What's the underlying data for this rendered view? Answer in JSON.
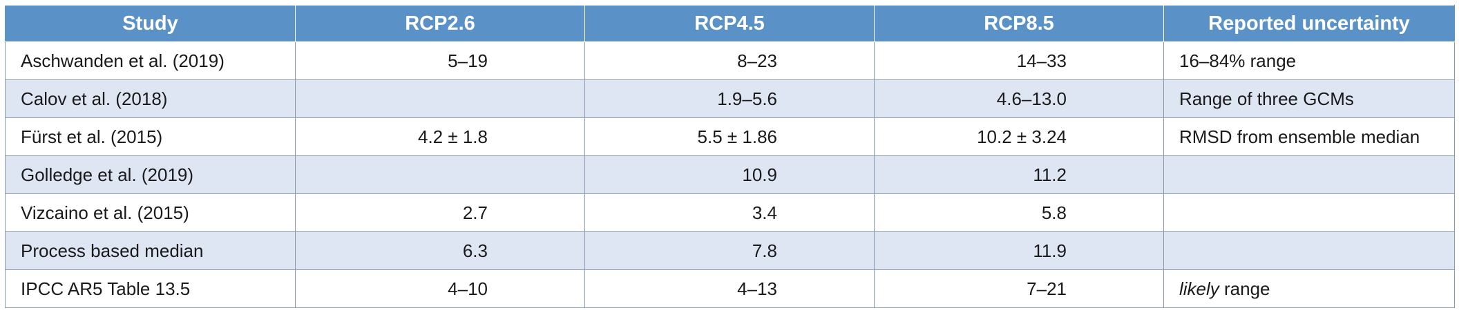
{
  "table": {
    "headers": [
      "Study",
      "RCP2.6",
      "RCP4.5",
      "RCP8.5",
      "Reported uncertainty"
    ],
    "rows": [
      {
        "study": "Aschwanden et al. (2019)",
        "rcp26": "5–19",
        "rcp45": "8–23",
        "rcp85": "14–33",
        "uncertainty": "16–84% range"
      },
      {
        "study": "Calov et al. (2018)",
        "rcp26": "",
        "rcp45": "1.9–5.6",
        "rcp85": "4.6–13.0",
        "uncertainty": "Range of three GCMs"
      },
      {
        "study": "Fürst et al. (2015)",
        "rcp26": "4.2 ± 1.8",
        "rcp45": "5.5 ± 1.86",
        "rcp85": "10.2 ± 3.24",
        "uncertainty": "RMSD from ensemble median"
      },
      {
        "study": "Golledge et al. (2019)",
        "rcp26": "",
        "rcp45": "10.9",
        "rcp85": "11.2",
        "uncertainty": ""
      },
      {
        "study": "Vizcaino et al. (2015)",
        "rcp26": "2.7",
        "rcp45": "3.4",
        "rcp85": "5.8",
        "uncertainty": ""
      },
      {
        "study": "Process based median",
        "rcp26": "6.3",
        "rcp45": "7.8",
        "rcp85": "11.9",
        "uncertainty": ""
      },
      {
        "study": "IPCC AR5 Table 13.5",
        "rcp26": "4–10",
        "rcp45": "4–13",
        "rcp85": "7–21",
        "uncertainty_italic": "likely",
        "uncertainty": " range"
      }
    ]
  },
  "colors": {
    "header_bg": "#5a92c7",
    "header_text": "#ffffff",
    "stripe_bg": "#dfe6f3",
    "border": "#8a9ab0"
  }
}
